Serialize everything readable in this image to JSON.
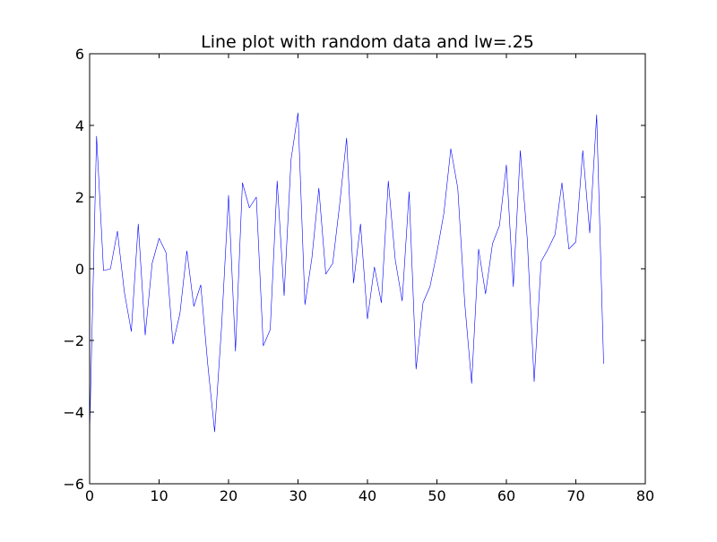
{
  "chart_data": {
    "type": "line",
    "title": "Line plot with random data and lw=.25",
    "xlabel": "",
    "ylabel": "",
    "xlim": [
      0,
      80
    ],
    "ylim": [
      -6,
      6
    ],
    "xticks": [
      0,
      10,
      20,
      30,
      40,
      50,
      60,
      70,
      80
    ],
    "yticks": [
      -6,
      -4,
      -2,
      0,
      2,
      4,
      6
    ],
    "grid": false,
    "legend": "none",
    "series": [
      {
        "color": "#0000ff",
        "linewidth": 0.25,
        "x": [
          0,
          1,
          2,
          3,
          4,
          5,
          6,
          7,
          8,
          9,
          10,
          11,
          12,
          13,
          14,
          15,
          16,
          17,
          18,
          19,
          20,
          21,
          22,
          23,
          24,
          25,
          26,
          27,
          28,
          29,
          30,
          31,
          32,
          33,
          34,
          35,
          36,
          37,
          38,
          39,
          40,
          41,
          42,
          43,
          44,
          45,
          46,
          47,
          48,
          49,
          50,
          51,
          52,
          53,
          54,
          55,
          56,
          57,
          58,
          59,
          60,
          61,
          62,
          63,
          64,
          65,
          66,
          67,
          68,
          69,
          70,
          71,
          72,
          73,
          74
        ],
        "y": [
          -4.6,
          3.7,
          -0.05,
          0.0,
          1.05,
          -0.65,
          -1.75,
          1.25,
          -1.85,
          0.15,
          0.85,
          0.45,
          -2.1,
          -1.25,
          0.5,
          -1.05,
          -0.45,
          -2.65,
          -4.55,
          -1.6,
          2.05,
          -2.3,
          2.4,
          1.7,
          2.0,
          -2.15,
          -1.7,
          2.45,
          -0.75,
          3.05,
          4.35,
          -1.0,
          0.3,
          2.25,
          -0.15,
          0.15,
          1.8,
          3.65,
          -0.4,
          1.25,
          -1.4,
          0.05,
          -0.95,
          2.45,
          0.25,
          -0.9,
          2.15,
          -2.8,
          -0.95,
          -0.5,
          0.45,
          1.55,
          3.35,
          2.25,
          -0.95,
          -3.2,
          0.55,
          -0.7,
          0.7,
          1.2,
          2.9,
          -0.5,
          3.3,
          0.85,
          -3.15,
          0.2,
          0.55,
          0.95,
          2.4,
          0.55,
          0.75,
          3.3,
          1.0,
          4.3,
          -2.65
        ]
      }
    ]
  }
}
